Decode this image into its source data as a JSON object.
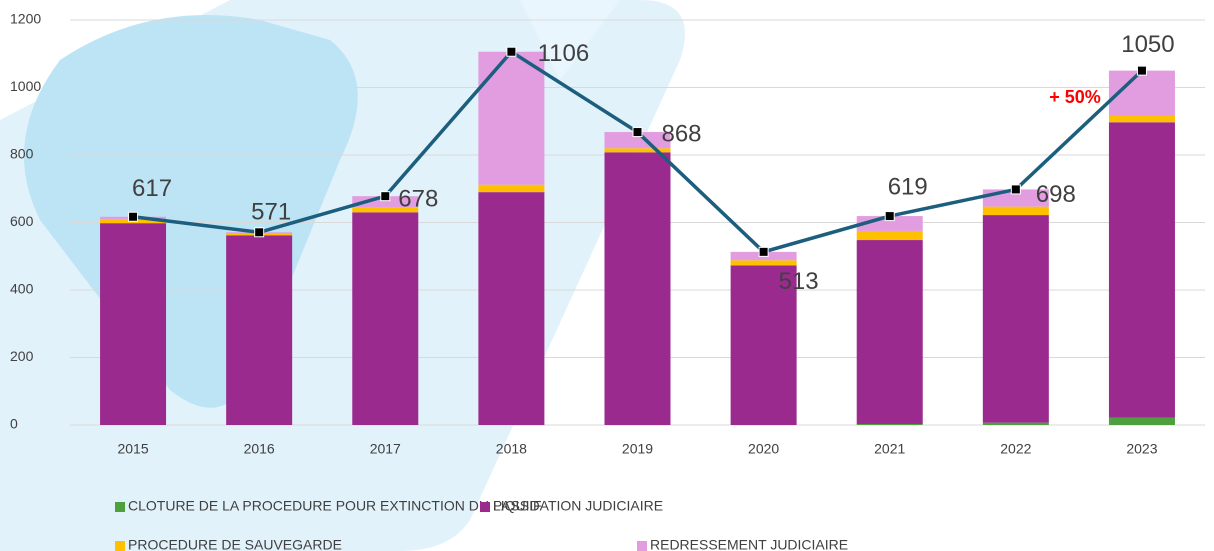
{
  "chart_data": {
    "type": "bar",
    "stacked": true,
    "categories": [
      "2015",
      "2016",
      "2017",
      "2018",
      "2019",
      "2020",
      "2021",
      "2022",
      "2023"
    ],
    "series": [
      {
        "name": "CLOTURE DE LA PROCEDURE POUR EXTINCTION DU PASSIF",
        "color": "#4e9f3d",
        "values": [
          0,
          0,
          0,
          0,
          0,
          0,
          3,
          7,
          22
        ]
      },
      {
        "name": "LIQUIDATION JUDICIAIRE",
        "color": "#9b2a8f",
        "values": [
          598,
          562,
          630,
          690,
          808,
          473,
          545,
          615,
          875
        ]
      },
      {
        "name": "PROCEDURE DE SAUVEGARDE",
        "color": "#ffc000",
        "values": [
          12,
          4,
          15,
          22,
          12,
          15,
          27,
          25,
          20
        ]
      },
      {
        "name": "REDRESSEMENT JUDICIAIRE",
        "color": "#e29ce0",
        "values": [
          7,
          5,
          33,
          394,
          48,
          25,
          44,
          51,
          133
        ]
      }
    ],
    "totals": [
      617,
      571,
      678,
      1106,
      868,
      513,
      619,
      698,
      1050
    ],
    "line_color": "#1b5e7e",
    "annotation": "+ 50%",
    "ylim": [
      0,
      1200
    ],
    "yticks": [
      0,
      200,
      400,
      600,
      800,
      1000,
      1200
    ],
    "grid": true
  }
}
